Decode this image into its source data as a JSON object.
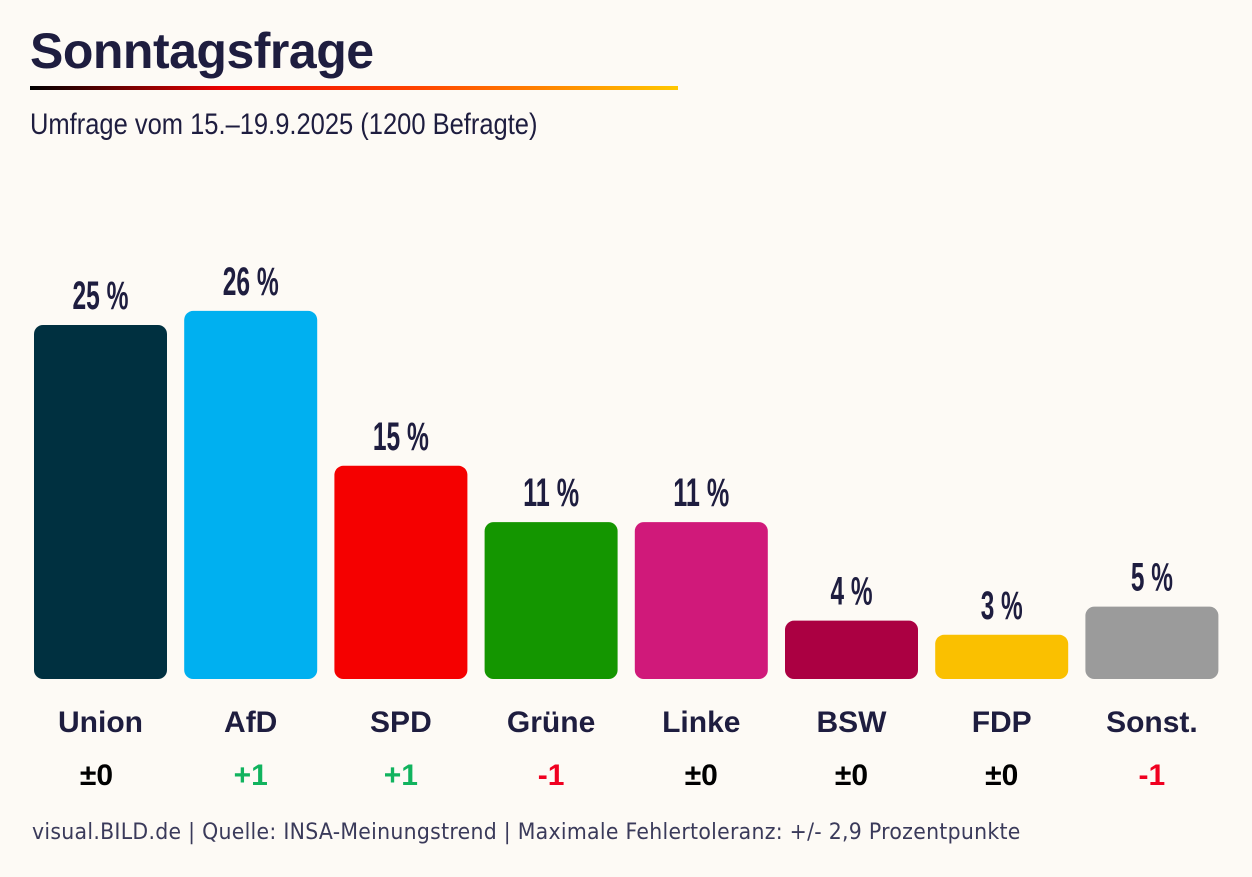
{
  "header": {
    "title": "Sonntagsfrage",
    "subtitle": "Umfrage vom 15.–19.9.2025 (1200 Befragte)"
  },
  "footer": "visual.BILD.de | Quelle: INSA-Meinungstrend | Maximale Fehlertoleranz: +/- 2,9 Prozentpunkte",
  "chart_data": {
    "type": "bar",
    "categories": [
      "Union",
      "AfD",
      "SPD",
      "Grüne",
      "Linke",
      "BSW",
      "FDP",
      "Sonst."
    ],
    "values": [
      25,
      26,
      15,
      11,
      11,
      4,
      3,
      5
    ],
    "value_labels": [
      "25 %",
      "26 %",
      "15 %",
      "11 %",
      "11 %",
      "4 %",
      "3 %",
      "5 %"
    ],
    "changes": [
      "±0",
      "+1",
      "+1",
      "-1",
      "±0",
      "±0",
      "±0",
      "-1"
    ],
    "colors": [
      "#003040",
      "#00b0f0",
      "#f50000",
      "#149600",
      "#d0197a",
      "#ab0042",
      "#fac000",
      "#9b9b9b"
    ],
    "change_colors": {
      "positive": "#11b35e",
      "negative": "#f00020",
      "neutral": "#000000"
    },
    "grid": false,
    "legend": "none"
  }
}
